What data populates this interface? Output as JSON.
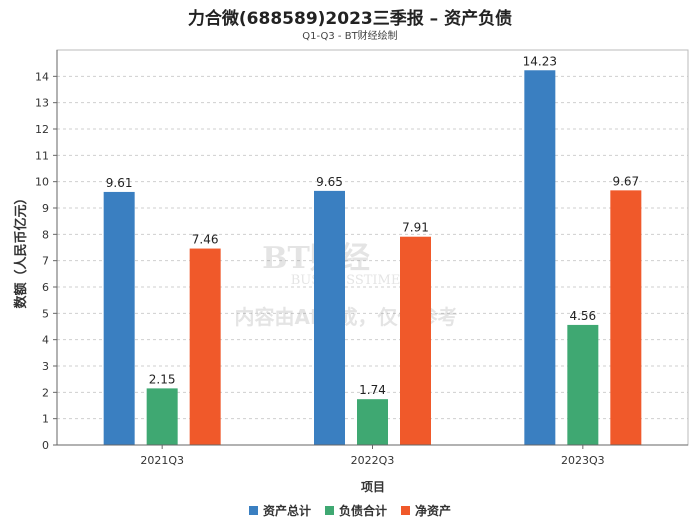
{
  "title": "力合微(688589)2023三季报 – 资产负债",
  "subtitle": "Q1-Q3 - BT财经绘制",
  "watermark": {
    "logo_text": "BT财经",
    "logo_sub": "BUSINESSTIMES",
    "note": "内容由AI生成，仅供参考"
  },
  "chart_data": {
    "type": "bar",
    "categories": [
      "2021Q3",
      "2022Q3",
      "2023Q3"
    ],
    "series": [
      {
        "name": "资产总计",
        "values": [
          9.61,
          9.65,
          14.23
        ],
        "color": "#3a7fc1"
      },
      {
        "name": "负债合计",
        "values": [
          2.15,
          1.74,
          4.56
        ],
        "color": "#3fa872"
      },
      {
        "name": "净资产",
        "values": [
          7.46,
          7.91,
          9.67
        ],
        "color": "#f0592a"
      }
    ],
    "xlabel": "项目",
    "ylabel": "数额（人民币亿元）",
    "ylim": [
      0,
      15
    ],
    "yticks": [
      0,
      1,
      2,
      3,
      4,
      5,
      6,
      7,
      8,
      9,
      10,
      11,
      12,
      13,
      14
    ],
    "grid": true,
    "legend_position": "bottom"
  }
}
